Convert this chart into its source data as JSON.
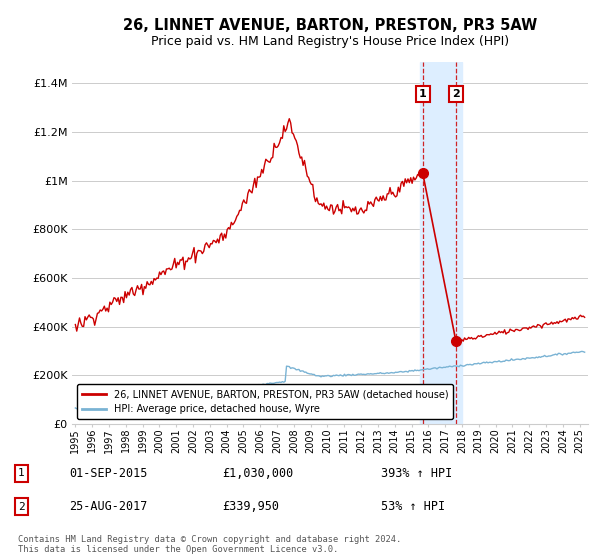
{
  "title": "26, LINNET AVENUE, BARTON, PRESTON, PR3 5AW",
  "subtitle": "Price paid vs. HM Land Registry's House Price Index (HPI)",
  "ylabel_ticks": [
    "£0",
    "£200K",
    "£400K",
    "£600K",
    "£800K",
    "£1M",
    "£1.2M",
    "£1.4M"
  ],
  "ytick_values": [
    0,
    200000,
    400000,
    600000,
    800000,
    1000000,
    1200000,
    1400000
  ],
  "ylim": [
    0,
    1490000
  ],
  "xlim_start": 1994.8,
  "xlim_end": 2025.5,
  "hpi_color": "#7ab3d4",
  "price_color": "#cc0000",
  "highlight_color": "#ddeeff",
  "legend_label_price": "26, LINNET AVENUE, BARTON, PRESTON, PR3 5AW (detached house)",
  "legend_label_hpi": "HPI: Average price, detached house, Wyre",
  "annotation1_date": "01-SEP-2015",
  "annotation1_price": "£1,030,000",
  "annotation1_pct": "393% ↑ HPI",
  "annotation2_date": "25-AUG-2017",
  "annotation2_price": "£339,950",
  "annotation2_pct": "53% ↑ HPI",
  "footnote": "Contains HM Land Registry data © Crown copyright and database right 2024.\nThis data is licensed under the Open Government Licence v3.0.",
  "sale1_x": 2015.67,
  "sale1_y": 1030000,
  "sale2_x": 2017.64,
  "sale2_y": 339950,
  "highlight_x1": 2015.5,
  "highlight_x2": 2018.0,
  "background_color": "#ffffff",
  "grid_color": "#cccccc"
}
